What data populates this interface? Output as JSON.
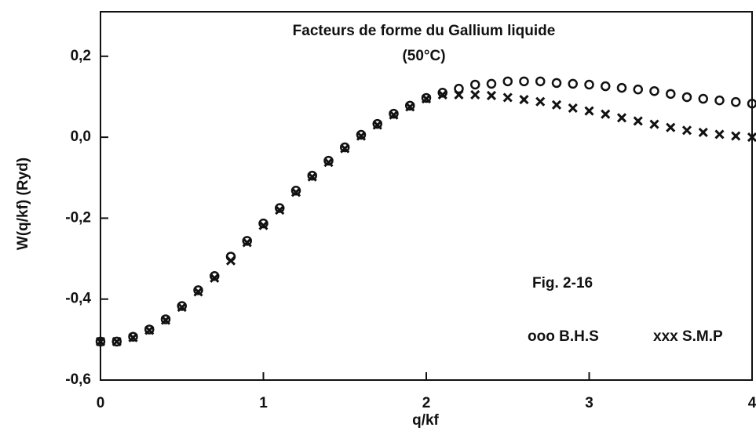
{
  "chart_data": {
    "type": "scatter",
    "title": "Facteurs de forme du Gallium liquide",
    "subtitle": "(50°C)",
    "x_label": "q/kf",
    "y_label": "W(q/kf)  (Ryd)",
    "annotations": [
      "Fig. 2-16"
    ],
    "x": [
      0,
      0.1,
      0.2,
      0.3,
      0.4,
      0.5,
      0.6,
      0.7,
      0.8,
      0.9,
      1.0,
      1.1,
      1.2,
      1.3,
      1.4,
      1.5,
      1.6,
      1.7,
      1.8,
      1.9,
      2.0,
      2.1,
      2.2,
      2.3,
      2.4,
      2.5,
      2.6,
      2.7,
      2.8,
      2.9,
      3.0,
      3.1,
      3.2,
      3.3,
      3.4,
      3.5,
      3.6,
      3.7,
      3.8,
      3.9,
      4.0
    ],
    "series": [
      {
        "name": "ooo B.H.S",
        "marker": "circle",
        "color": "#111111",
        "values": [
          -0.505,
          -0.505,
          -0.493,
          -0.475,
          -0.45,
          -0.417,
          -0.378,
          -0.343,
          -0.295,
          -0.256,
          -0.213,
          -0.175,
          -0.132,
          -0.095,
          -0.058,
          -0.025,
          0.006,
          0.033,
          0.058,
          0.078,
          0.097,
          0.11,
          0.12,
          0.13,
          0.132,
          0.138,
          0.138,
          0.138,
          0.134,
          0.132,
          0.13,
          0.126,
          0.122,
          0.118,
          0.114,
          0.107,
          0.099,
          0.095,
          0.091,
          0.087,
          0.083
        ]
      },
      {
        "name": "xxx S.M.P",
        "marker": "cross",
        "color": "#111111",
        "values": [
          -0.505,
          -0.505,
          -0.495,
          -0.477,
          -0.452,
          -0.42,
          -0.382,
          -0.348,
          -0.305,
          -0.26,
          -0.218,
          -0.18,
          -0.136,
          -0.098,
          -0.062,
          -0.028,
          0.003,
          0.03,
          0.055,
          0.075,
          0.095,
          0.105,
          0.105,
          0.105,
          0.103,
          0.098,
          0.093,
          0.088,
          0.08,
          0.072,
          0.065,
          0.057,
          0.048,
          0.04,
          0.032,
          0.024,
          0.017,
          0.012,
          0.007,
          0.003,
          0.0
        ]
      }
    ],
    "xlim": [
      0,
      4
    ],
    "ylim": [
      -0.6,
      0.31
    ],
    "xticks": [
      0,
      1,
      2,
      3,
      4
    ],
    "yticks": [
      {
        "value": -0.6,
        "label": "-0,6"
      },
      {
        "value": -0.4,
        "label": "-0,4"
      },
      {
        "value": -0.2,
        "label": "-0,2"
      },
      {
        "value": 0,
        "label": "0,0"
      },
      {
        "value": 0.2,
        "label": "0,2"
      }
    ]
  }
}
